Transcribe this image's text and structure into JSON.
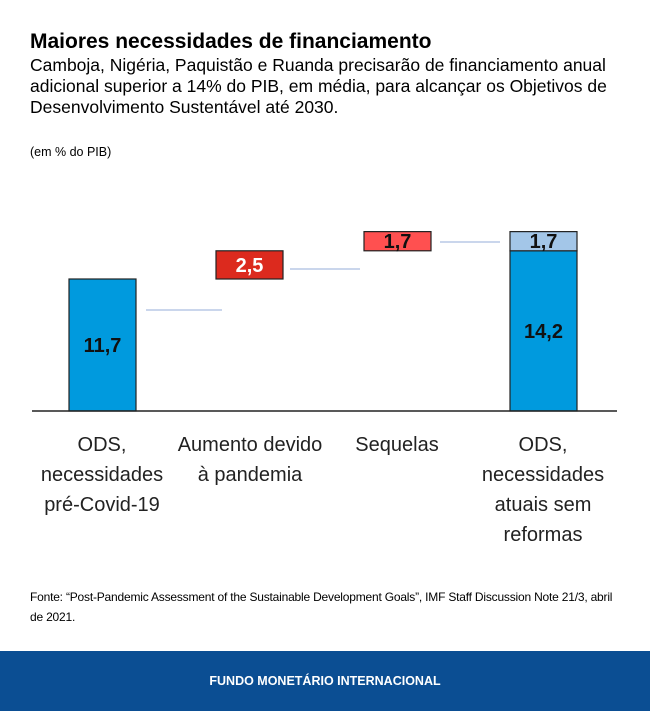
{
  "chart_data": {
    "type": "bar",
    "subtype": "waterfall",
    "title": "Maiores necessidades de financiamento",
    "subtitle": "Camboja, Nigéria, Paquistão e Ruanda precisarão de financiamento anual adicional superior a 14% do PIB, em média, para alcançar os Objetivos de Desenvolvimento Sustentável até 2030.",
    "unit": "(em % do PIB)",
    "categories": [
      "ODS, necessidades pré-Covid-19",
      "Aumento devido à pandemia",
      "Sequelas",
      "ODS, necessidades atuais sem reformas"
    ],
    "bars": [
      {
        "base": 0,
        "value": 11.7,
        "label": "11,7",
        "color": "#009ade"
      },
      {
        "base": 11.7,
        "value": 2.5,
        "label": "2,5",
        "color": "#dc2a1e"
      },
      {
        "base": 14.2,
        "value": 1.7,
        "label": "1,7",
        "color": "#ff5050"
      },
      {
        "base": 0,
        "value": 14.2,
        "label": "14,2",
        "color": "#009ade",
        "stack": {
          "value": 1.7,
          "label": "1,7",
          "color": "#a3c6e8"
        }
      }
    ],
    "ylim": [
      0,
      16
    ],
    "grid": false
  },
  "source": "Fonte: “Post-Pandemic Assessment of the Sustainable Development Goals”, IMF Staff Discussion Note 21/3, abril de 2021.",
  "footer": "FUNDO MONETÁRIO INTERNACIONAL"
}
